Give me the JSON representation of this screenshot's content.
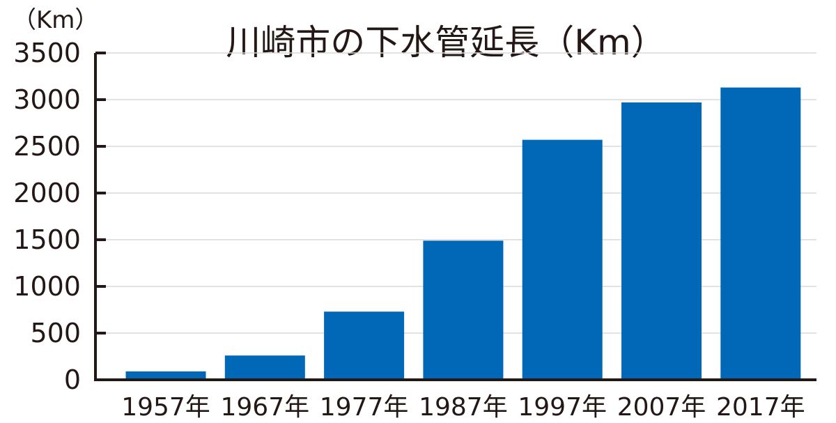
{
  "chart_data": {
    "type": "bar",
    "title": "川崎市の下水管延長（Km）",
    "ylabel": "（Km）",
    "xlabel": "",
    "categories": [
      "1957年",
      "1967年",
      "1977年",
      "1987年",
      "1997年",
      "2007年",
      "2017年"
    ],
    "values": [
      90,
      260,
      730,
      1490,
      2570,
      2970,
      3130
    ],
    "ylim": [
      0,
      3500
    ],
    "yticks": [
      "0",
      "500",
      "1000",
      "1500",
      "2000",
      "2500",
      "3000",
      "3500"
    ],
    "grid": true,
    "legend": "none",
    "bar_color": "#0068b7",
    "grid_color": "#d9d9d9",
    "axis_color": "#231815"
  }
}
